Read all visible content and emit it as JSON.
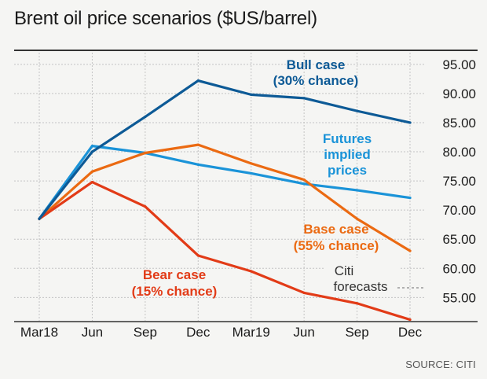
{
  "title": "Brent oil price scenarios ($US/barrel)",
  "source": "SOURCE: CITI",
  "chart_data": {
    "type": "line",
    "title": "Brent oil price scenarios ($US/barrel)",
    "categories": [
      "Mar18",
      "Jun",
      "Sep",
      "Dec",
      "Mar19",
      "Jun",
      "Sep",
      "Dec"
    ],
    "ylim": [
      51,
      97
    ],
    "yticks": [
      "95.00",
      "90.00",
      "85.00",
      "80.00",
      "75.00",
      "70.00",
      "65.00",
      "60.00",
      "55.00"
    ],
    "ytick_values": [
      95,
      90,
      85,
      80,
      75,
      70,
      65,
      60,
      55
    ],
    "grid": true,
    "series": [
      {
        "key": "bull",
        "label_lines": [
          "Bull case",
          "(30% chance)"
        ],
        "color": "#0d5a96",
        "x": [
          0,
          1,
          2,
          3,
          4,
          5,
          6,
          7
        ],
        "values": [
          68.5,
          80,
          86,
          92.2,
          89.8,
          89.2,
          87,
          85
        ]
      },
      {
        "key": "futures",
        "label_lines": [
          "Futures",
          "implied",
          "prices"
        ],
        "color": "#1a93d8",
        "x": [
          0,
          1,
          2,
          3,
          4,
          5,
          6,
          7
        ],
        "values": [
          68.5,
          81,
          79.8,
          77.8,
          76.3,
          74.5,
          73.4,
          72.1
        ]
      },
      {
        "key": "base",
        "label_lines": [
          "Base case",
          "(55% chance)"
        ],
        "color": "#eb6a12",
        "x": [
          0,
          1,
          2,
          3,
          4,
          5,
          6,
          7
        ],
        "values": [
          68.5,
          76.6,
          79.8,
          81.2,
          78,
          75.2,
          68.5,
          63
        ]
      },
      {
        "key": "bear",
        "label_lines": [
          "Bear case",
          "(15% chance)"
        ],
        "color": "#e23b17",
        "x": [
          0,
          1,
          2,
          3,
          4,
          5,
          6,
          7
        ],
        "values": [
          68.5,
          74.8,
          70.6,
          62.2,
          59.5,
          55.8,
          54,
          51.2
        ]
      }
    ],
    "annotations": {
      "forecast_label_lines": [
        "Citi",
        "forecasts"
      ]
    }
  }
}
